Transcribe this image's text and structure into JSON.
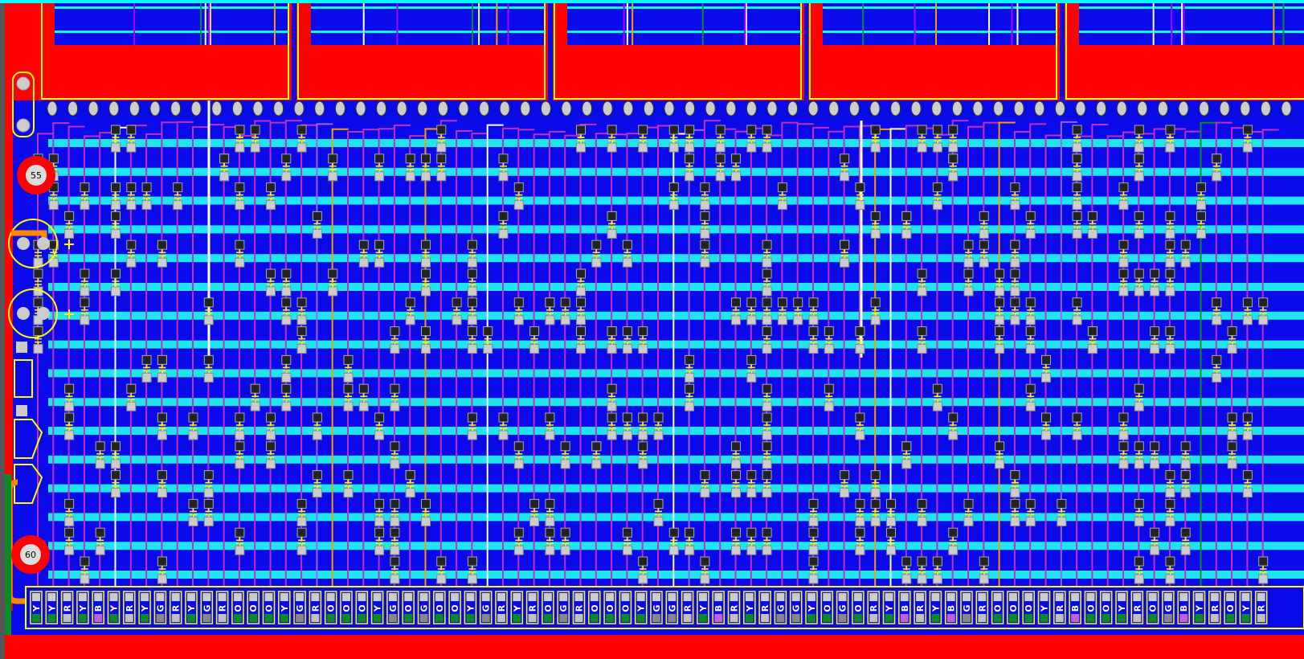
{
  "board": {
    "ring_labels": [
      "55",
      "60"
    ],
    "connector": {
      "pins": [
        "Y",
        "Y",
        "R",
        "Y",
        "B",
        "Y",
        "R",
        "Y",
        "G",
        "R",
        "Y",
        "G",
        "R",
        "O",
        "O",
        "O",
        "Y",
        "G",
        "R",
        "O",
        "O",
        "O",
        "Y",
        "G",
        "O",
        "G",
        "O",
        "O",
        "Y",
        "G",
        "R",
        "Y",
        "R",
        "O",
        "G",
        "R",
        "O",
        "O",
        "O",
        "Y",
        "G",
        "G",
        "R",
        "Y",
        "B",
        "R",
        "Y",
        "R",
        "G",
        "G",
        "Y",
        "O",
        "G",
        "O",
        "R",
        "Y",
        "B",
        "R",
        "Y",
        "B",
        "G",
        "R",
        "O",
        "O",
        "O",
        "Y",
        "R",
        "B",
        "O",
        "O",
        "Y",
        "R",
        "O",
        "G",
        "B",
        "Y",
        "R",
        "O",
        "Y",
        "R"
      ]
    }
  }
}
